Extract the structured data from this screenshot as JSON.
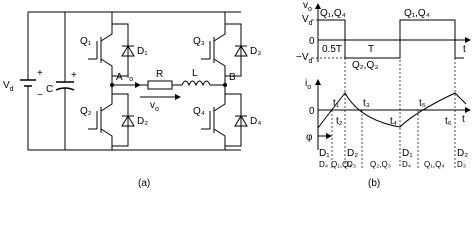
{
  "circuit": {
    "source": {
      "main": "V",
      "sub": "d"
    },
    "plus": "+",
    "minus": "−",
    "cap": "C",
    "cap_plus": "+",
    "switches": [
      {
        "q": "Q₁",
        "d": "D₁"
      },
      {
        "q": "Q₂",
        "d": "D₂"
      },
      {
        "q": "Q₃",
        "d": "D₃"
      },
      {
        "q": "Q₄",
        "d": "D₄"
      }
    ],
    "node_a": "A",
    "node_b": "B",
    "current": {
      "main": "i",
      "sub": "o"
    },
    "resistor": "R",
    "inductor": "L",
    "voltage": {
      "main": "v",
      "sub": "o"
    }
  },
  "waveforms": {
    "vo_axis": {
      "main": "v",
      "sub": "o"
    },
    "vd": {
      "main": "V",
      "sub": "d"
    },
    "neg_vd": {
      "main": "−V",
      "sub": "d"
    },
    "zero_top": "0",
    "t_top": "t",
    "on_pos": [
      "Q₁,Q₄",
      "Q₁,Q₄"
    ],
    "on_neg": "Q₂,Q₃",
    "half": "0.5T",
    "period": "T",
    "io_axis": {
      "main": "i",
      "sub": "o"
    },
    "zero_bottom": "0",
    "t_bottom": "t",
    "times": [
      "t₁",
      "t₂",
      "t₃",
      "t₄",
      "t₅",
      "t₆"
    ],
    "phi": "φ",
    "conduction_top": [
      "D₁",
      "D₂",
      "D₁",
      "D₂"
    ],
    "conduction_bottom": [
      "D₄",
      "Q₁,Q₄",
      "D₃",
      "Q₂,Q₃",
      "D₄",
      "Q₁,Q₄",
      "D₃"
    ]
  },
  "captions": [
    "(a)",
    "(b)"
  ]
}
